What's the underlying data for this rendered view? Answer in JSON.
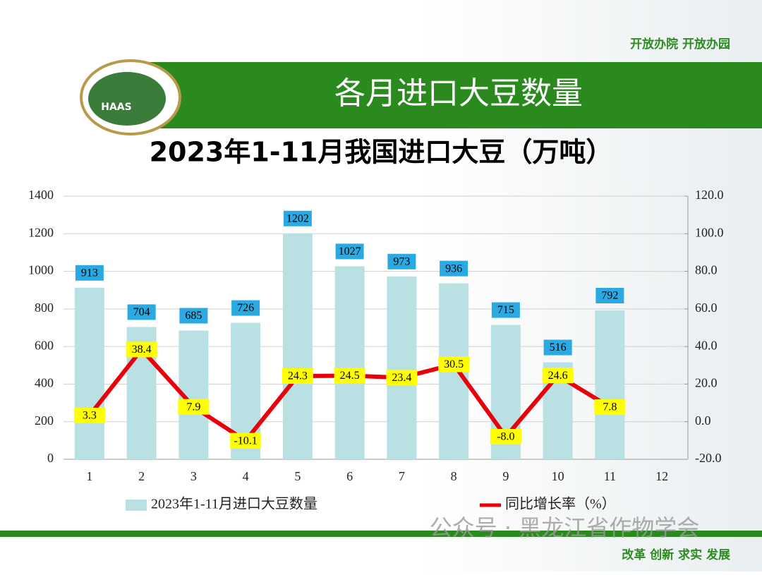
{
  "slogan_top": "开放办院 开放办园",
  "header": "各月进口大豆数量",
  "logo": "HAAS",
  "watermark": "公众号 · 黑龙江省作物学会",
  "slogan_bottom": "改革 创新 求实 发展",
  "chart_data": {
    "type": "bar",
    "title": "2023年1-11月我国进口大豆（万吨）",
    "categories": [
      "1",
      "2",
      "3",
      "4",
      "5",
      "6",
      "7",
      "8",
      "9",
      "10",
      "11",
      "12"
    ],
    "series": [
      {
        "name": "2023年1-11月进口大豆数量",
        "type": "bar",
        "color": "#b9e0e2",
        "values": [
          913,
          704,
          685,
          726,
          1202,
          1027,
          973,
          936,
          715,
          516,
          792,
          null
        ]
      },
      {
        "name": "同比增长率（%）",
        "type": "line",
        "color": "#e8000b",
        "axis": "y2",
        "values": [
          3.3,
          38.4,
          7.9,
          -10.1,
          24.3,
          24.5,
          23.4,
          30.5,
          -8.0,
          24.6,
          7.8,
          null
        ],
        "value_labels": [
          "3.3",
          "38.4",
          "7.9",
          "-10.1",
          "24.3",
          "24.5",
          "23.4",
          "30.5",
          "-8.0",
          "24.6",
          "7.8",
          null
        ]
      }
    ],
    "ylim": [
      0,
      1400
    ],
    "yticks": [
      0,
      200,
      400,
      600,
      800,
      1000,
      1200,
      1400
    ],
    "y2lim": [
      -20,
      120
    ],
    "y2ticks": [
      {
        "value": -20,
        "label": "-20.0"
      },
      {
        "value": 0,
        "label": "0.0"
      },
      {
        "value": 20,
        "label": "20.0"
      },
      {
        "value": 40,
        "label": "40.0"
      },
      {
        "value": 60,
        "label": "60.0"
      },
      {
        "value": 80,
        "label": "80.0"
      },
      {
        "value": 100,
        "label": "100.0"
      },
      {
        "value": 120,
        "label": "120.0"
      }
    ],
    "grid": true
  }
}
